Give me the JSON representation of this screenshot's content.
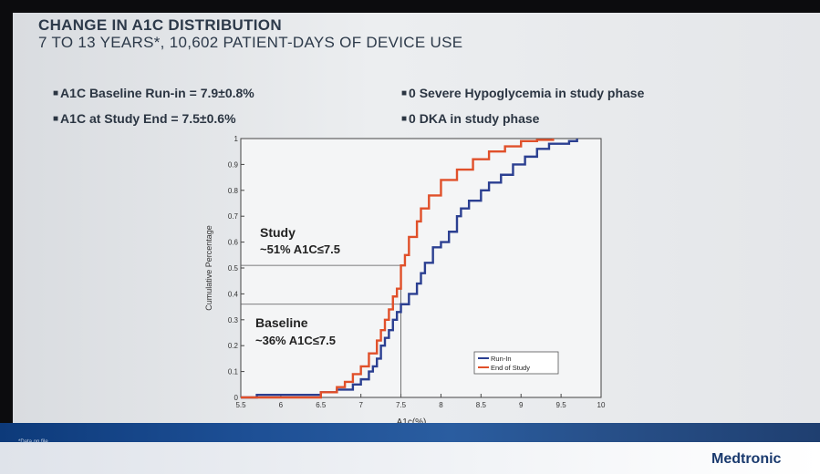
{
  "title": "CHANGE IN A1C DISTRIBUTION",
  "subtitle": "7 TO 13 YEARS*, 10,602 PATIENT-DAYS OF DEVICE USE",
  "bullets_left": [
    "A1C Baseline Run-in  = 7.9±0.8%",
    "A1C at Study End  = 7.5±0.6%"
  ],
  "bullets_right": [
    "0 Severe Hypoglycemia in study phase",
    "0 DKA in study phase"
  ],
  "footnote": "*Data on file.",
  "brand": "Medtronic",
  "annotations": {
    "study_line1": "Study",
    "study_line2": "~51% A1C≤7.5",
    "baseline_line1": "Baseline",
    "baseline_line2": "~36% A1C≤7.5"
  },
  "chart_data": {
    "type": "line",
    "title": "",
    "xlabel": "A1c(%)",
    "ylabel": "Cumulative Percentage",
    "xlim": [
      5.5,
      10
    ],
    "ylim": [
      0,
      1
    ],
    "xticks": [
      "5.5",
      "6",
      "6.5",
      "7",
      "7.5",
      "8",
      "8.5",
      "9",
      "9.5",
      "10"
    ],
    "yticks": [
      "0",
      "0.1",
      "0.2",
      "0.3",
      "0.4",
      "0.5",
      "0.6",
      "0.7",
      "0.8",
      "0.9",
      "1"
    ],
    "grid": false,
    "legend": "bottom-right",
    "series": [
      {
        "name": "Run-In",
        "color": "#2b3f91",
        "points": [
          [
            5.5,
            0
          ],
          [
            5.7,
            0.01
          ],
          [
            6.3,
            0.01
          ],
          [
            6.5,
            0.02
          ],
          [
            6.7,
            0.03
          ],
          [
            6.9,
            0.05
          ],
          [
            7.0,
            0.07
          ],
          [
            7.1,
            0.1
          ],
          [
            7.15,
            0.12
          ],
          [
            7.2,
            0.15
          ],
          [
            7.25,
            0.2
          ],
          [
            7.3,
            0.23
          ],
          [
            7.35,
            0.26
          ],
          [
            7.4,
            0.3
          ],
          [
            7.45,
            0.33
          ],
          [
            7.5,
            0.36
          ],
          [
            7.6,
            0.4
          ],
          [
            7.7,
            0.44
          ],
          [
            7.75,
            0.48
          ],
          [
            7.8,
            0.52
          ],
          [
            7.9,
            0.58
          ],
          [
            8.0,
            0.6
          ],
          [
            8.1,
            0.64
          ],
          [
            8.2,
            0.7
          ],
          [
            8.25,
            0.73
          ],
          [
            8.35,
            0.76
          ],
          [
            8.5,
            0.8
          ],
          [
            8.6,
            0.83
          ],
          [
            8.75,
            0.86
          ],
          [
            8.9,
            0.9
          ],
          [
            9.05,
            0.93
          ],
          [
            9.2,
            0.96
          ],
          [
            9.35,
            0.98
          ],
          [
            9.6,
            0.99
          ],
          [
            9.7,
            1.0
          ]
        ]
      },
      {
        "name": "End of Study",
        "color": "#e0502a",
        "points": [
          [
            5.5,
            0
          ],
          [
            6.3,
            0.0
          ],
          [
            6.5,
            0.02
          ],
          [
            6.7,
            0.04
          ],
          [
            6.8,
            0.06
          ],
          [
            6.9,
            0.09
          ],
          [
            7.0,
            0.12
          ],
          [
            7.1,
            0.17
          ],
          [
            7.2,
            0.22
          ],
          [
            7.25,
            0.26
          ],
          [
            7.3,
            0.3
          ],
          [
            7.35,
            0.34
          ],
          [
            7.4,
            0.39
          ],
          [
            7.45,
            0.42
          ],
          [
            7.5,
            0.51
          ],
          [
            7.55,
            0.55
          ],
          [
            7.6,
            0.62
          ],
          [
            7.7,
            0.68
          ],
          [
            7.75,
            0.73
          ],
          [
            7.85,
            0.78
          ],
          [
            8.0,
            0.84
          ],
          [
            8.2,
            0.88
          ],
          [
            8.4,
            0.92
          ],
          [
            8.6,
            0.95
          ],
          [
            8.8,
            0.97
          ],
          [
            9.0,
            0.99
          ],
          [
            9.2,
            0.995
          ],
          [
            9.4,
            1.0
          ]
        ]
      }
    ],
    "reference_lines": [
      {
        "label": "Study",
        "x": 7.5,
        "y": 0.51
      },
      {
        "label": "Baseline",
        "x": 7.5,
        "y": 0.36
      }
    ]
  }
}
